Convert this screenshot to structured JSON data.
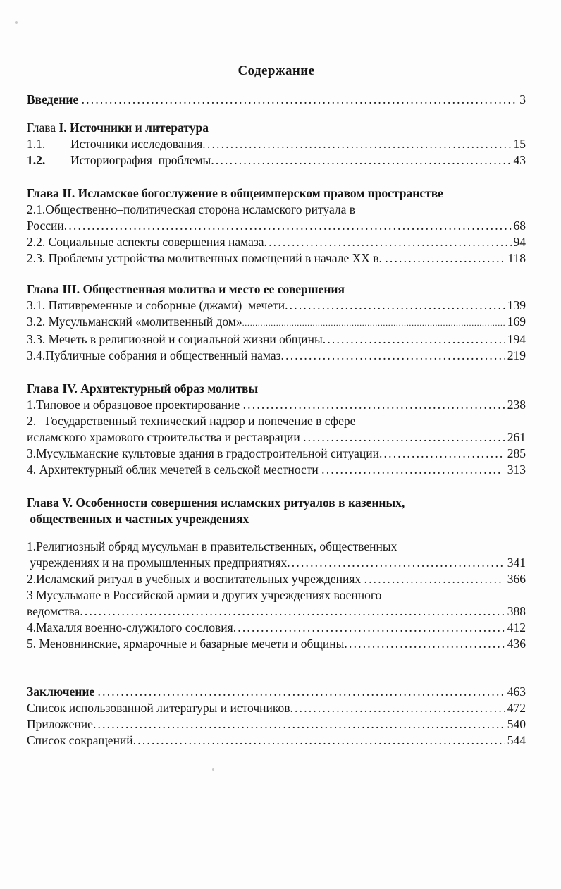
{
  "document": {
    "title": "Содержание",
    "page_background": "#fdfdfd",
    "text_color": "#161616"
  },
  "toc": {
    "lines": [
      {
        "text": "Введение ",
        "bold": true,
        "dots": true,
        "page": "3"
      },
      {
        "prefix": "Глава ",
        "text": "I. Источники и литература",
        "bold": true,
        "gap": 17
      },
      {
        "prefix": "1.1.",
        "prefix_tab": true,
        "text": "Источники исследования",
        "dots": true,
        "page": "15"
      },
      {
        "prefix": "1.2.",
        "prefix_bold": true,
        "prefix_tab": true,
        "text": "Историография  проблемы",
        "dots": true,
        "page": "43"
      },
      {
        "text": "Глава II. Исламское богослужение в общеимперском правом пространстве",
        "bold": true,
        "gap": 24
      },
      {
        "text": "2.1.Общественно–политическая сторона исламского ритуала в"
      },
      {
        "text": "России",
        "dots": true,
        "page": "68"
      },
      {
        "text": "2.2. Социальные аспекты совершения намаза",
        "dots": true,
        "page": "94"
      },
      {
        "text": "2.3. Проблемы устройства молитвенных помещений в начале XX в. ",
        "dots": true,
        "page": "118"
      },
      {
        "text": "Глава III. Общественная молитва и место ее совершения",
        "bold": true,
        "gap": 21
      },
      {
        "text": "3.1. Пятивременные и соборные (джами)  мечети",
        "dots": true,
        "page": "139"
      },
      {
        "text": "3.2. Мусульманский «молитвенный дом»",
        "dots": true,
        "fine_dots": true,
        "page": "169"
      },
      {
        "text": "3.3. Мечеть в религиозной и социальной жизни общины",
        "dots": true,
        "page": "194"
      },
      {
        "text": "3.4.Публичные собрания и общественный намаз",
        "dots": true,
        "page": "219"
      },
      {
        "text": "Глава IV. Архитектурный образ молитвы",
        "bold": true,
        "gap": 24
      },
      {
        "text": "1.Типовое и образцовое проектирование ",
        "dots": true,
        "page": "238"
      },
      {
        "text": "2.   Государственный технический надзор и попечение в сфере"
      },
      {
        "text": "исламского храмового строительства и реставрации ",
        "dots": true,
        "page": "261"
      },
      {
        "text": "3.Мусульманские культовые здания в градостроительной ситуации",
        "dots": true,
        "page": "285"
      },
      {
        "text": "4. Архитектурный облик мечетей в сельской местности ",
        "dots": true,
        "page": " 313"
      },
      {
        "text": "Глава V. Особенности совершения исламских ритуалов в казенных,",
        "bold": true,
        "gap": 24
      },
      {
        "text": " общественных и частных учреждениях",
        "bold": true
      },
      {
        "text": "1.Религиозный обряд мусульман в правительственных, общественных",
        "gap": 16
      },
      {
        "text": " учреждениях и на промышленных предприятиях",
        "dots": true,
        "page": "341"
      },
      {
        "text": "2.Исламский ритуал в учебных и воспитательных учреждениях ",
        "dots": true,
        "page": " 366"
      },
      {
        "text": "3 Мусульмане в Российской армии и других учреждениях военного"
      },
      {
        "text": "ведомства",
        "dots": true,
        "page": "388"
      },
      {
        "text": "4.Махалля военно-служилого сословия",
        "dots": true,
        "page": "412"
      },
      {
        "text": "5. Меновнинские, ярмарочные и базарные мечети и общины",
        "dots": true,
        "page": "436"
      },
      {
        "text": "Заключение ",
        "bold": true,
        "dots": true,
        "page": "463",
        "gap": 45
      },
      {
        "text": "Список использованной литературы и источников",
        "dots": true,
        "page": "472"
      },
      {
        "text": "Приложение",
        "dots": true,
        "page": "540"
      },
      {
        "text": "Список сокращений",
        "dots": true,
        "page": "544"
      }
    ]
  }
}
